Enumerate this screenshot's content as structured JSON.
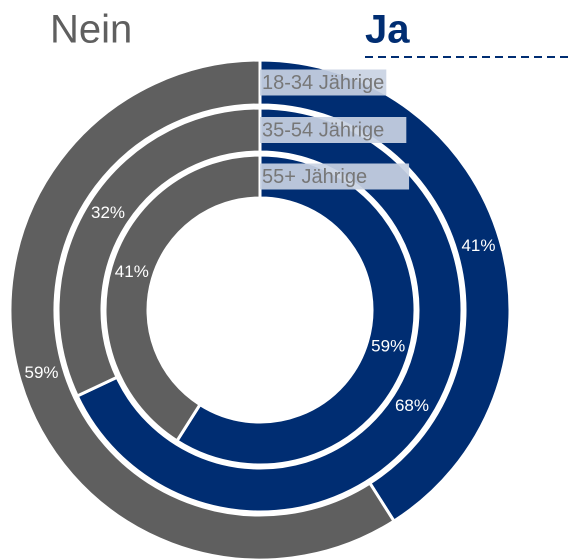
{
  "chart_data": {
    "type": "donut",
    "categories": [
      "Ja",
      "Nein"
    ],
    "colors": [
      "#002d72",
      "#5f5f5f"
    ],
    "series": [
      {
        "name": "18-34 Jährige",
        "values": [
          41,
          59
        ],
        "value_labels": [
          "41%",
          "59%"
        ]
      },
      {
        "name": "35-54 Jährige",
        "values": [
          68,
          32
        ],
        "value_labels": [
          "68%",
          "32%"
        ]
      },
      {
        "name": "55+ Jährige",
        "values": [
          59,
          41
        ],
        "value_labels": [
          "59%",
          "41%"
        ]
      }
    ]
  }
}
